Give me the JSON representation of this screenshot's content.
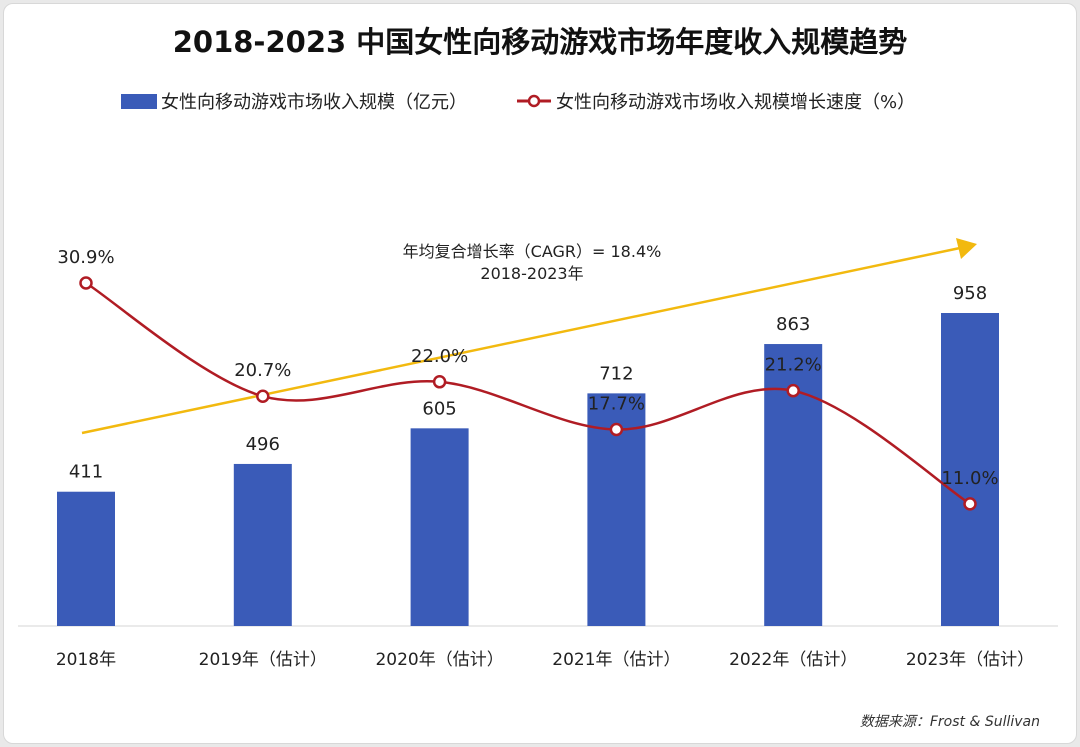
{
  "chart_data": {
    "type": "bar",
    "title": "2018-2023  中国女性向移动游戏市场年度收入规模趋势",
    "categories": [
      "2018年",
      "2019年（估计）",
      "2020年（估计）",
      "2021年（估计）",
      "2022年（估计）",
      "2023年（估计）"
    ],
    "series": [
      {
        "name": "女性向移动游戏市场收入规模（亿元）",
        "type": "bar",
        "values": [
          411,
          496,
          605,
          712,
          863,
          958
        ],
        "labels": [
          "411",
          "496",
          "605",
          "712",
          "863",
          "958"
        ],
        "color": "#3a5bb8"
      },
      {
        "name": "女性向移动游戏市场收入规模增长速度（%）",
        "type": "line",
        "values": [
          30.9,
          20.7,
          22.0,
          17.7,
          21.2,
          11.0
        ],
        "labels": [
          "30.9%",
          "20.7%",
          "22.0%",
          "17.7%",
          "21.2%",
          "11.0%"
        ],
        "color": "#b01c24"
      }
    ],
    "annotation": {
      "line1": "年均复合增长率（CAGR）= 18.4%",
      "line2": "2018-2023年",
      "color": "#f2b90f"
    },
    "bar_ylim": [
      0,
      958
    ],
    "line_ylim": [
      0,
      30.9
    ],
    "legend": "top",
    "grid": false,
    "source": "数据来源：Frost & Sullivan"
  }
}
